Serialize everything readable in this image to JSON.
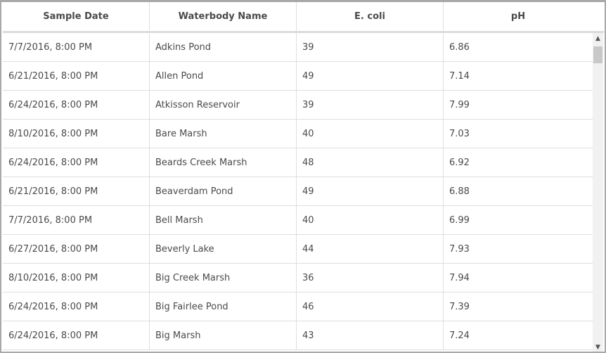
{
  "columns": [
    "Sample Date",
    "Waterbody Name",
    "E. coli",
    "pH"
  ],
  "rows": [
    [
      "7/7/2016, 8:00 PM",
      "Adkins Pond",
      "39",
      "6.86"
    ],
    [
      "6/21/2016, 8:00 PM",
      "Allen Pond",
      "49",
      "7.14"
    ],
    [
      "6/24/2016, 8:00 PM",
      "Atkisson Reservoir",
      "39",
      "7.99"
    ],
    [
      "8/10/2016, 8:00 PM",
      "Bare Marsh",
      "40",
      "7.03"
    ],
    [
      "6/24/2016, 8:00 PM",
      "Beards Creek Marsh",
      "48",
      "6.92"
    ],
    [
      "6/21/2016, 8:00 PM",
      "Beaverdam Pond",
      "49",
      "6.88"
    ],
    [
      "7/7/2016, 8:00 PM",
      "Bell Marsh",
      "40",
      "6.99"
    ],
    [
      "6/27/2016, 8:00 PM",
      "Beverly Lake",
      "44",
      "7.93"
    ],
    [
      "8/10/2016, 8:00 PM",
      "Big Creek Marsh",
      "36",
      "7.94"
    ],
    [
      "6/24/2016, 8:00 PM",
      "Big Fairlee Pond",
      "46",
      "7.39"
    ],
    [
      "6/24/2016, 8:00 PM",
      "Big Marsh",
      "43",
      "7.24"
    ]
  ],
  "scrollbar": {
    "position_fraction": 0.0,
    "up_icon": "chevron-up-icon",
    "down_icon": "chevron-down-icon"
  }
}
